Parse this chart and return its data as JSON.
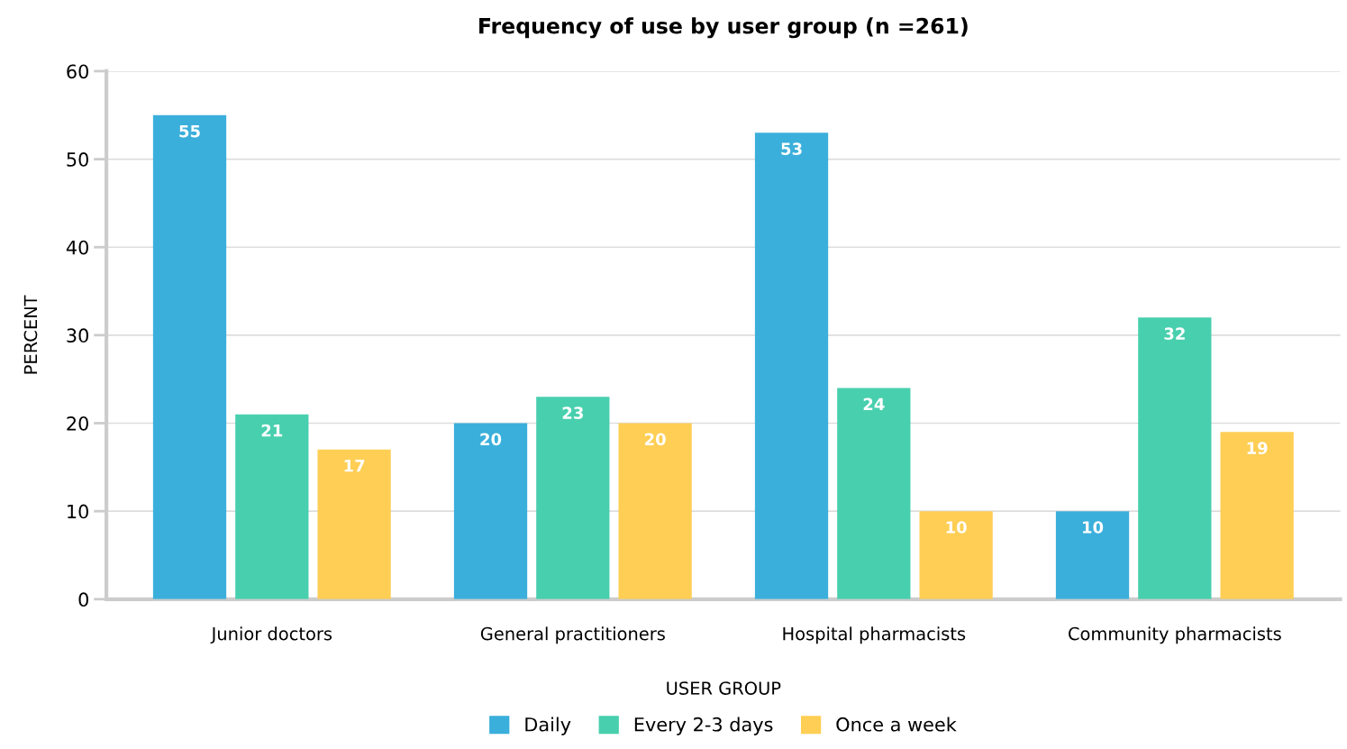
{
  "chart_data": {
    "type": "bar",
    "title": "Frequency of use by user group (n =261)",
    "xlabel": "USER GROUP",
    "ylabel": "PERCENT",
    "categories": [
      "Junior doctors",
      "General practitioners",
      "Hospital pharmacists",
      "Community pharmacists"
    ],
    "series": [
      {
        "name": "Daily",
        "color": "#3bafdb",
        "values": [
          55,
          20,
          53,
          10
        ]
      },
      {
        "name": "Every 2-3 days",
        "color": "#48cfae",
        "values": [
          21,
          23,
          24,
          32
        ]
      },
      {
        "name": "Once a week",
        "color": "#ffce54",
        "values": [
          17,
          20,
          10,
          19
        ]
      }
    ],
    "ylim": [
      0,
      60
    ],
    "yticks": [
      0,
      10,
      20,
      30,
      40,
      50,
      60
    ],
    "grid": "y",
    "legend": "bottom",
    "data_labels": true
  }
}
